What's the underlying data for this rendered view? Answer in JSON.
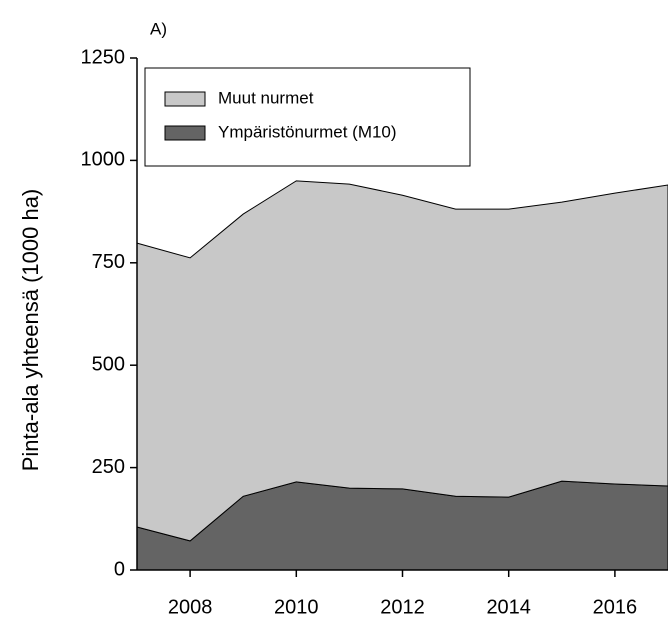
{
  "chart_data": {
    "type": "area",
    "stacked": true,
    "annotation": "A)",
    "y_label": "Pinta-ala yhteensä (1000 ha)",
    "x": [
      2007,
      2008,
      2009,
      2010,
      2011,
      2012,
      2013,
      2014,
      2015,
      2016,
      2017
    ],
    "series": [
      {
        "name": "Ympäristönurmet (M10)",
        "color": "#646464",
        "values": [
          105,
          71,
          180,
          215,
          200,
          198,
          180,
          178,
          217,
          210,
          205
        ]
      },
      {
        "name": "Muut nurmet",
        "color": "#c8c8c8",
        "values": [
          693,
          691,
          689,
          735,
          742,
          717,
          701,
          703,
          681,
          710,
          735
        ]
      }
    ],
    "xlim": [
      2007,
      2017
    ],
    "xticks": [
      2008,
      2010,
      2012,
      2014,
      2016
    ],
    "ylim": [
      0,
      1250
    ],
    "yticks": [
      0,
      250,
      500,
      750,
      1000,
      1250
    ],
    "legend": "upper left"
  }
}
